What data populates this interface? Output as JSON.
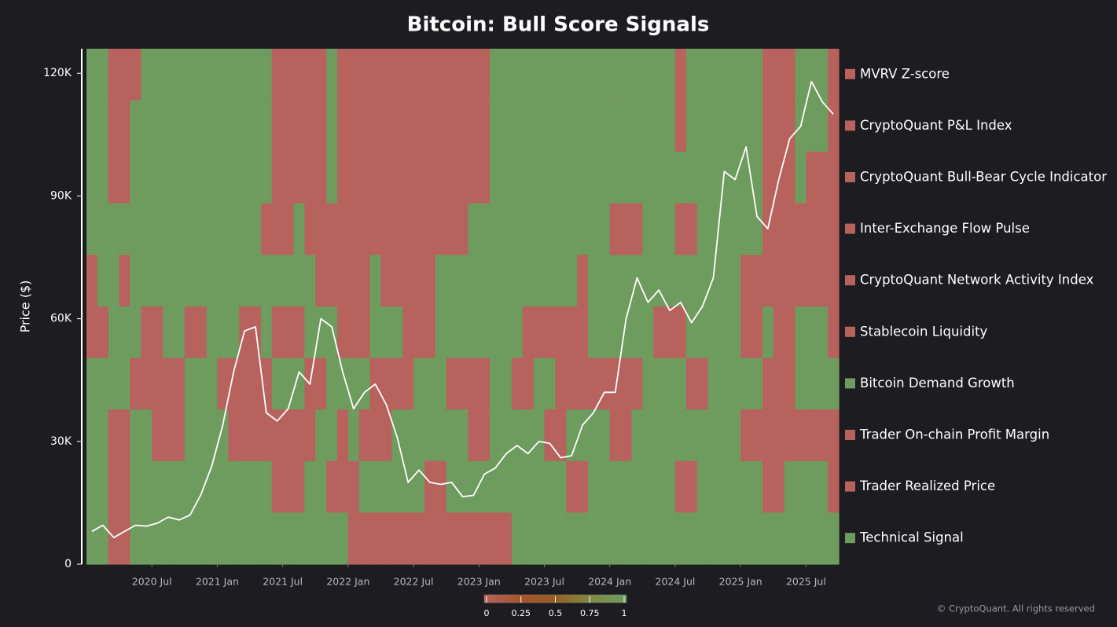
{
  "chart_data": {
    "type": "heatmap",
    "title": "Bitcoin: Bull Score Signals",
    "y_label": "Price ($)",
    "footer": "© CryptoQuant. All rights reserved",
    "x": [
      "2020-01",
      "2020-02",
      "2020-03",
      "2020-04",
      "2020-05",
      "2020-06",
      "2020-07",
      "2020-08",
      "2020-09",
      "2020-10",
      "2020-11",
      "2020-12",
      "2021-01",
      "2021-02",
      "2021-03",
      "2021-04",
      "2021-05",
      "2021-06",
      "2021-07",
      "2021-08",
      "2021-09",
      "2021-10",
      "2021-11",
      "2021-12",
      "2022-01",
      "2022-02",
      "2022-03",
      "2022-04",
      "2022-05",
      "2022-06",
      "2022-07",
      "2022-08",
      "2022-09",
      "2022-10",
      "2022-11",
      "2022-12",
      "2023-01",
      "2023-02",
      "2023-03",
      "2023-04",
      "2023-05",
      "2023-06",
      "2023-07",
      "2023-08",
      "2023-09",
      "2023-10",
      "2023-11",
      "2023-12",
      "2024-01",
      "2024-02",
      "2024-03",
      "2024-04",
      "2024-05",
      "2024-06",
      "2024-07",
      "2024-08",
      "2024-09",
      "2024-10",
      "2024-11",
      "2024-12",
      "2025-01",
      "2025-02",
      "2025-03",
      "2025-04",
      "2025-05",
      "2025-06",
      "2025-07",
      "2025-08",
      "2025-09"
    ],
    "xticks": [
      {
        "value": "2020-07",
        "label": "2020 Jul"
      },
      {
        "value": "2021-01",
        "label": "2021 Jan"
      },
      {
        "value": "2021-07",
        "label": "2021 Jul"
      },
      {
        "value": "2022-01",
        "label": "2022 Jan"
      },
      {
        "value": "2022-07",
        "label": "2022 Jul"
      },
      {
        "value": "2023-01",
        "label": "2023 Jan"
      },
      {
        "value": "2023-07",
        "label": "2023 Jul"
      },
      {
        "value": "2024-01",
        "label": "2024 Jan"
      },
      {
        "value": "2024-07",
        "label": "2024 Jul"
      },
      {
        "value": "2025-01",
        "label": "2025 Jan"
      },
      {
        "value": "2025-07",
        "label": "2025 Jul"
      }
    ],
    "rows": [
      {
        "name": "MVRV Z-score",
        "values": [
          1,
          1,
          0,
          0,
          0,
          1,
          1,
          1,
          1,
          1,
          1,
          1,
          1,
          1,
          1,
          1,
          1,
          0,
          0,
          0,
          0,
          0,
          1,
          0,
          0,
          0,
          0,
          0,
          0,
          0,
          0,
          0,
          0,
          0,
          0,
          0,
          0,
          1,
          1,
          1,
          1,
          1,
          1,
          1,
          1,
          1,
          1,
          1,
          1,
          1,
          1,
          1,
          1,
          1,
          0,
          1,
          1,
          1,
          1,
          1,
          1,
          1,
          0,
          0,
          0,
          1,
          1,
          1,
          0
        ]
      },
      {
        "name": "CryptoQuant P&L Index",
        "values": [
          1,
          1,
          0,
          0,
          1,
          1,
          1,
          1,
          1,
          1,
          1,
          1,
          1,
          1,
          1,
          1,
          1,
          0,
          0,
          0,
          0,
          0,
          1,
          0,
          0,
          0,
          0,
          0,
          0,
          0,
          0,
          0,
          0,
          0,
          0,
          0,
          0,
          1,
          1,
          1,
          1,
          1,
          1,
          1,
          1,
          1,
          1,
          1,
          1,
          1,
          1,
          1,
          1,
          1,
          0,
          1,
          1,
          1,
          1,
          1,
          1,
          1,
          0,
          0,
          0,
          1,
          1,
          1,
          0
        ]
      },
      {
        "name": "CryptoQuant Bull-Bear Cycle Indicator",
        "values": [
          1,
          1,
          0,
          0,
          1,
          1,
          1,
          1,
          1,
          1,
          1,
          1,
          1,
          1,
          1,
          1,
          1,
          0,
          0,
          0,
          0,
          0,
          1,
          0,
          0,
          0,
          0,
          0,
          0,
          0,
          0,
          0,
          0,
          0,
          0,
          0,
          0,
          1,
          1,
          1,
          1,
          1,
          1,
          1,
          1,
          1,
          1,
          1,
          1,
          1,
          1,
          1,
          1,
          1,
          1,
          1,
          1,
          1,
          1,
          1,
          1,
          1,
          0,
          0,
          0,
          1,
          0,
          0,
          0
        ]
      },
      {
        "name": "Inter-Exchange Flow Pulse",
        "values": [
          1,
          1,
          1,
          1,
          1,
          1,
          1,
          1,
          1,
          1,
          1,
          1,
          1,
          1,
          1,
          1,
          0,
          0,
          0,
          1,
          0,
          0,
          0,
          0,
          0,
          0,
          0,
          0,
          0,
          0,
          0,
          0,
          0,
          0,
          0,
          1,
          1,
          1,
          1,
          1,
          1,
          1,
          1,
          1,
          1,
          1,
          1,
          1,
          0,
          0,
          0,
          1,
          1,
          1,
          0,
          0,
          1,
          1,
          1,
          1,
          1,
          1,
          0,
          0,
          0,
          0,
          0,
          0,
          0
        ]
      },
      {
        "name": "CryptoQuant Network Activity Index",
        "values": [
          0,
          1,
          1,
          0,
          1,
          1,
          1,
          1,
          1,
          1,
          1,
          1,
          1,
          1,
          1,
          1,
          1,
          1,
          1,
          1,
          1,
          0,
          0,
          0,
          0,
          0,
          1,
          0,
          0,
          0,
          0,
          0,
          1,
          1,
          1,
          1,
          1,
          1,
          1,
          1,
          1,
          1,
          1,
          1,
          1,
          0,
          1,
          1,
          1,
          1,
          1,
          1,
          1,
          1,
          1,
          1,
          1,
          1,
          1,
          1,
          0,
          0,
          0,
          0,
          0,
          0,
          0,
          0,
          0
        ]
      },
      {
        "name": "Stablecoin Liquidity",
        "values": [
          0,
          0,
          1,
          1,
          1,
          0,
          0,
          1,
          1,
          0,
          0,
          1,
          1,
          1,
          0,
          0,
          1,
          0,
          0,
          0,
          1,
          1,
          1,
          0,
          0,
          0,
          1,
          1,
          1,
          0,
          0,
          0,
          1,
          1,
          1,
          1,
          1,
          1,
          1,
          1,
          0,
          0,
          0,
          0,
          0,
          0,
          1,
          1,
          1,
          1,
          1,
          1,
          0,
          0,
          0,
          1,
          1,
          1,
          1,
          1,
          0,
          0,
          1,
          0,
          0,
          1,
          1,
          1,
          0
        ]
      },
      {
        "name": "Bitcoin Demand Growth",
        "values": [
          1,
          1,
          1,
          1,
          0,
          0,
          0,
          0,
          0,
          1,
          1,
          1,
          0,
          0,
          0,
          0,
          0,
          1,
          1,
          1,
          0,
          0,
          1,
          1,
          1,
          1,
          0,
          0,
          0,
          0,
          1,
          1,
          1,
          0,
          0,
          0,
          0,
          1,
          1,
          0,
          0,
          1,
          1,
          0,
          0,
          0,
          0,
          0,
          0,
          0,
          0,
          1,
          1,
          1,
          1,
          0,
          0,
          1,
          1,
          1,
          1,
          1,
          0,
          0,
          0,
          1,
          1,
          1,
          1
        ]
      },
      {
        "name": "Trader On-chain Profit Margin",
        "values": [
          1,
          1,
          0,
          0,
          1,
          1,
          0,
          0,
          0,
          1,
          1,
          1,
          1,
          0,
          0,
          0,
          0,
          0,
          0,
          0,
          0,
          1,
          1,
          0,
          1,
          0,
          0,
          0,
          1,
          1,
          1,
          1,
          1,
          1,
          1,
          0,
          0,
          1,
          1,
          1,
          1,
          1,
          0,
          0,
          1,
          1,
          1,
          1,
          0,
          0,
          1,
          1,
          1,
          1,
          1,
          1,
          1,
          1,
          1,
          1,
          0,
          0,
          0,
          0,
          0,
          0,
          0,
          0,
          0
        ]
      },
      {
        "name": "Trader Realized Price",
        "values": [
          1,
          1,
          0,
          0,
          1,
          1,
          1,
          1,
          1,
          1,
          1,
          1,
          1,
          1,
          1,
          1,
          1,
          0,
          0,
          0,
          1,
          1,
          0,
          0,
          0,
          1,
          1,
          1,
          1,
          1,
          1,
          0,
          0,
          1,
          1,
          1,
          1,
          1,
          1,
          1,
          1,
          1,
          1,
          1,
          0,
          0,
          1,
          1,
          1,
          1,
          1,
          1,
          1,
          1,
          0,
          0,
          1,
          1,
          1,
          1,
          1,
          1,
          0,
          0,
          1,
          1,
          1,
          1,
          0
        ]
      },
      {
        "name": "Technical Signal",
        "values": [
          1,
          1,
          0,
          0,
          1,
          1,
          1,
          1,
          1,
          1,
          1,
          1,
          1,
          1,
          1,
          1,
          1,
          1,
          1,
          1,
          1,
          1,
          1,
          1,
          0,
          0,
          0,
          0,
          0,
          0,
          0,
          0,
          0,
          0,
          0,
          0,
          0,
          0,
          0,
          1,
          1,
          1,
          1,
          1,
          1,
          1,
          1,
          1,
          1,
          1,
          1,
          1,
          1,
          1,
          1,
          1,
          1,
          1,
          1,
          1,
          1,
          1,
          1,
          1,
          1,
          1,
          1,
          1,
          1
        ]
      }
    ],
    "line_values": [
      8000,
      9500,
      6500,
      8000,
      9500,
      9300,
      10000,
      11500,
      10800,
      12000,
      17000,
      24000,
      34000,
      47000,
      57000,
      58000,
      37000,
      35000,
      38000,
      47000,
      44000,
      60000,
      58000,
      47000,
      38000,
      42000,
      44000,
      39000,
      31000,
      20000,
      23000,
      20000,
      19500,
      20000,
      16500,
      16800,
      22000,
      23500,
      27000,
      29000,
      27000,
      30000,
      29500,
      26000,
      26500,
      34000,
      37000,
      42000,
      42000,
      60000,
      70000,
      64000,
      67000,
      62000,
      64000,
      59000,
      63000,
      70000,
      96000,
      94000,
      102000,
      85000,
      82000,
      94000,
      104000,
      107000,
      118000,
      113000,
      110000
    ],
    "line_color": "#ffffff",
    "ylim": [
      0,
      126000
    ],
    "yticks": [
      {
        "value": 0,
        "label": "0"
      },
      {
        "value": 30000,
        "label": "30K"
      },
      {
        "value": 60000,
        "label": "60K"
      },
      {
        "value": 90000,
        "label": "90K"
      },
      {
        "value": 120000,
        "label": "120K"
      }
    ],
    "colorscale": [
      "#b7625c",
      "#a9522a",
      "#955f20",
      "#7f8a43",
      "#6e9b5e"
    ],
    "colorbar_ticks": [
      0,
      0.25,
      0.5,
      0.75,
      1
    ]
  }
}
